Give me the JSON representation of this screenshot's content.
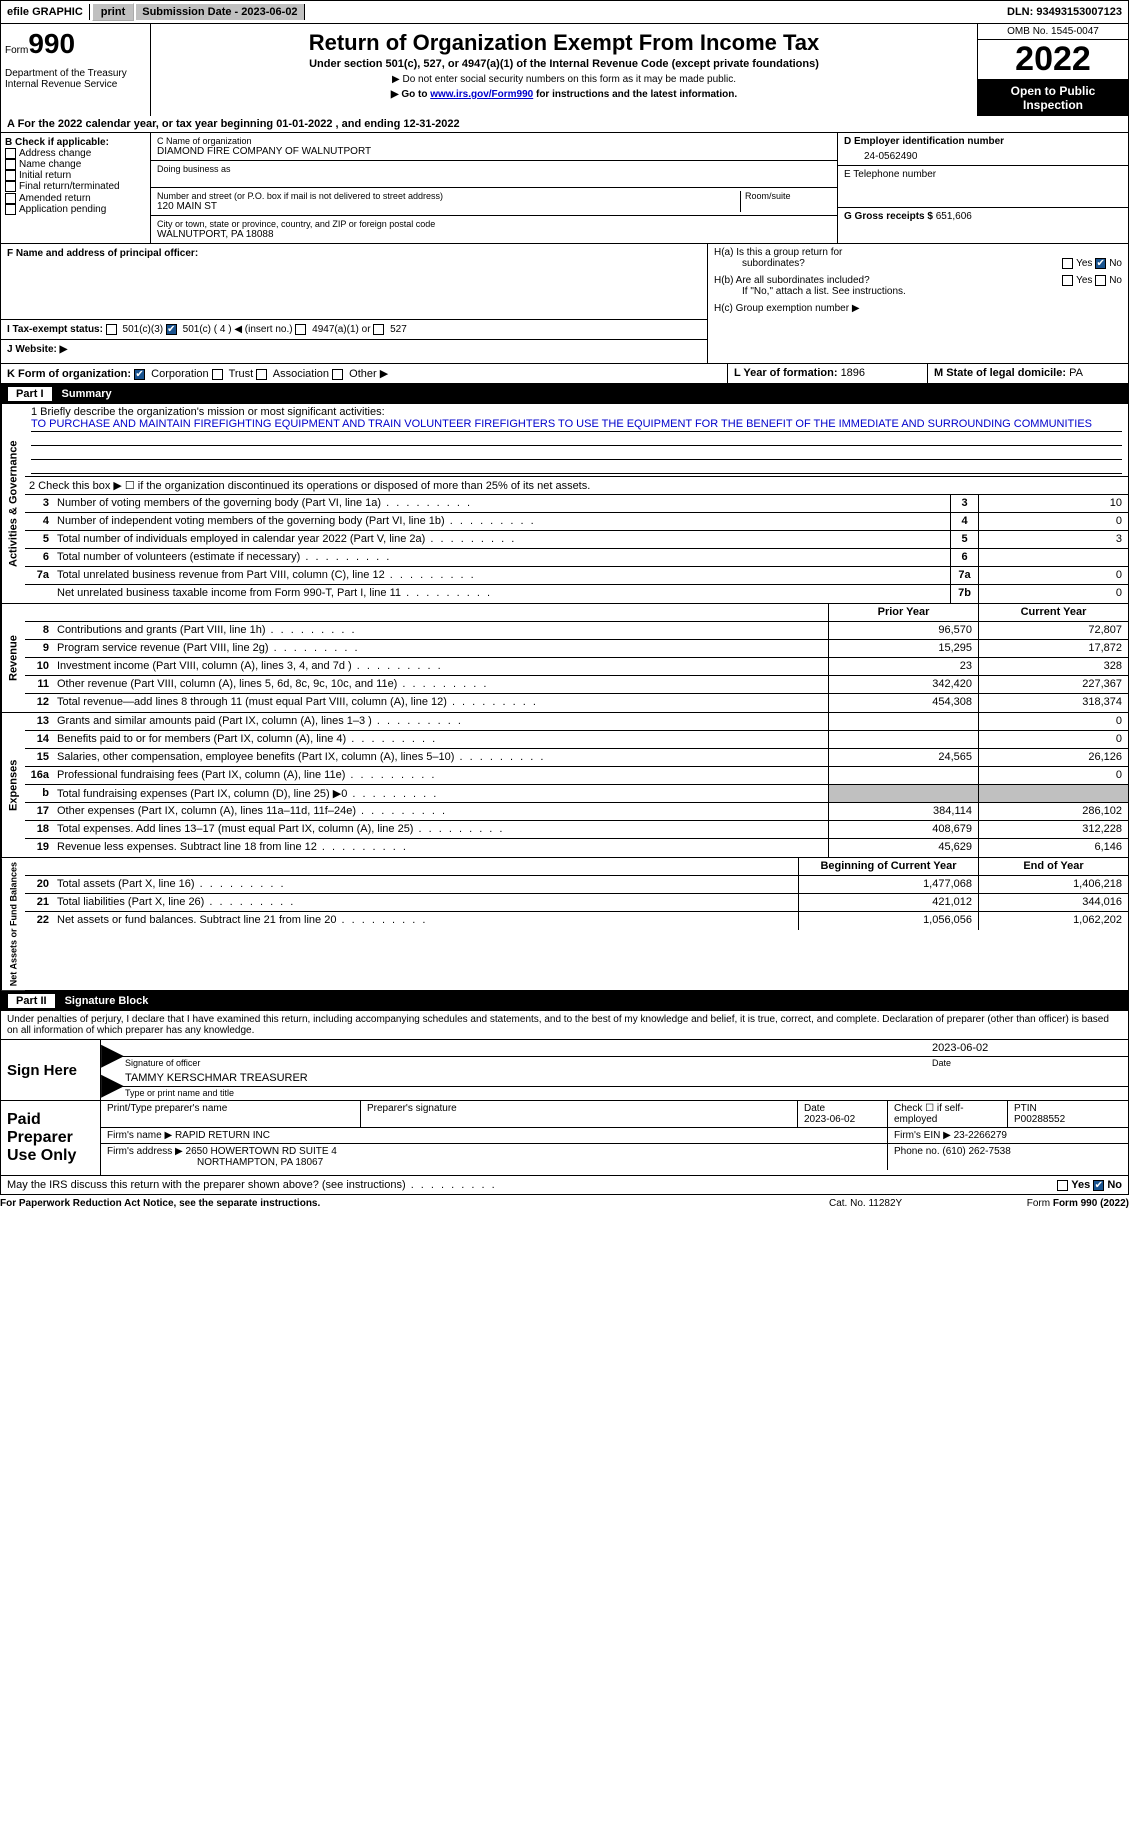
{
  "topbar": {
    "efile": "efile GRAPHIC",
    "print": "print",
    "sub_label": "Submission Date - ",
    "sub_date": "2023-06-02",
    "dln_label": "DLN: ",
    "dln": "93493153007123"
  },
  "header": {
    "form_word": "Form",
    "form_num": "990",
    "dept1": "Department of the Treasury",
    "dept2": "Internal Revenue Service",
    "title": "Return of Organization Exempt From Income Tax",
    "subtitle": "Under section 501(c), 527, or 4947(a)(1) of the Internal Revenue Code (except private foundations)",
    "instr1": "▶ Do not enter social security numbers on this form as it may be made public.",
    "instr2_pre": "▶ Go to ",
    "instr2_link": "www.irs.gov/Form990",
    "instr2_post": " for instructions and the latest information.",
    "omb": "OMB No. 1545-0047",
    "year": "2022",
    "open_pub": "Open to Public Inspection"
  },
  "row_a": "A For the 2022 calendar year, or tax year beginning 01-01-2022   , and ending 12-31-2022",
  "sec_b": {
    "head": "B Check if applicable:",
    "opts": [
      "Address change",
      "Name change",
      "Initial return",
      "Final return/terminated",
      "Amended return",
      "Application pending"
    ]
  },
  "sec_c": {
    "name_lbl": "C Name of organization",
    "name": "DIAMOND FIRE COMPANY OF WALNUTPORT",
    "dba_lbl": "Doing business as",
    "addr_lbl": "Number and street (or P.O. box if mail is not delivered to street address)",
    "room_lbl": "Room/suite",
    "addr": "120 MAIN ST",
    "city_lbl": "City or town, state or province, country, and ZIP or foreign postal code",
    "city": "WALNUTPORT, PA  18088"
  },
  "sec_d": {
    "ein_lbl": "D Employer identification number",
    "ein": "24-0562490",
    "tel_lbl": "E Telephone number",
    "gross_lbl": "G Gross receipts $ ",
    "gross": "651,606"
  },
  "sec_f": "F  Name and address of principal officer:",
  "sec_h": {
    "ha_lbl": "H(a)  Is this a group return for",
    "ha_sub": "subordinates?",
    "hb_lbl": "H(b)  Are all subordinates included?",
    "hb_note": "If \"No,\" attach a list. See instructions.",
    "hc_lbl": "H(c)  Group exemption number ▶",
    "yes": "Yes",
    "no": "No"
  },
  "row_i": {
    "label": "I  Tax-exempt status:",
    "opt1": "501(c)(3)",
    "opt2": "501(c) ( 4 ) ◀ (insert no.)",
    "opt3": "4947(a)(1) or",
    "opt4": "527"
  },
  "row_j": "J  Website: ▶",
  "row_k": {
    "label": "K Form of organization:",
    "opts": [
      "Corporation",
      "Trust",
      "Association",
      "Other ▶"
    ],
    "l_lbl": "L Year of formation: ",
    "l_val": "1896",
    "m_lbl": "M State of legal domicile: ",
    "m_val": "PA"
  },
  "part1": {
    "label": "Part I",
    "title": "Summary",
    "q1_pre": "1   Briefly describe the organization's mission or most significant activities:",
    "mission": "TO PURCHASE AND MAINTAIN FIREFIGHTING EQUIPMENT AND TRAIN VOLUNTEER FIREFIGHTERS TO USE THE EQUIPMENT FOR THE BENEFIT OF THE IMMEDIATE AND SURROUNDING COMMUNITIES",
    "q2": "2   Check this box ▶ ☐  if the organization discontinued its operations or disposed of more than 25% of its net assets.",
    "rows_a": [
      {
        "n": "3",
        "d": "Number of voting members of the governing body (Part VI, line 1a)",
        "b": "3",
        "v": "10"
      },
      {
        "n": "4",
        "d": "Number of independent voting members of the governing body (Part VI, line 1b)",
        "b": "4",
        "v": "0"
      },
      {
        "n": "5",
        "d": "Total number of individuals employed in calendar year 2022 (Part V, line 2a)",
        "b": "5",
        "v": "3"
      },
      {
        "n": "6",
        "d": "Total number of volunteers (estimate if necessary)",
        "b": "6",
        "v": ""
      },
      {
        "n": "7a",
        "d": "Total unrelated business revenue from Part VIII, column (C), line 12",
        "b": "7a",
        "v": "0"
      },
      {
        "n": "",
        "d": "Net unrelated business taxable income from Form 990-T, Part I, line 11",
        "b": "7b",
        "v": "0"
      }
    ],
    "col_prior": "Prior Year",
    "col_current": "Current Year",
    "vert_ag": "Activities & Governance",
    "vert_rev": "Revenue",
    "vert_exp": "Expenses",
    "vert_net": "Net Assets or Fund Balances",
    "rows_rev": [
      {
        "n": "8",
        "d": "Contributions and grants (Part VIII, line 1h)",
        "p": "96,570",
        "c": "72,807"
      },
      {
        "n": "9",
        "d": "Program service revenue (Part VIII, line 2g)",
        "p": "15,295",
        "c": "17,872"
      },
      {
        "n": "10",
        "d": "Investment income (Part VIII, column (A), lines 3, 4, and 7d )",
        "p": "23",
        "c": "328"
      },
      {
        "n": "11",
        "d": "Other revenue (Part VIII, column (A), lines 5, 6d, 8c, 9c, 10c, and 11e)",
        "p": "342,420",
        "c": "227,367"
      },
      {
        "n": "12",
        "d": "Total revenue—add lines 8 through 11 (must equal Part VIII, column (A), line 12)",
        "p": "454,308",
        "c": "318,374"
      }
    ],
    "rows_exp": [
      {
        "n": "13",
        "d": "Grants and similar amounts paid (Part IX, column (A), lines 1–3 )",
        "p": "",
        "c": "0"
      },
      {
        "n": "14",
        "d": "Benefits paid to or for members (Part IX, column (A), line 4)",
        "p": "",
        "c": "0"
      },
      {
        "n": "15",
        "d": "Salaries, other compensation, employee benefits (Part IX, column (A), lines 5–10)",
        "p": "24,565",
        "c": "26,126"
      },
      {
        "n": "16a",
        "d": "Professional fundraising fees (Part IX, column (A), line 11e)",
        "p": "",
        "c": "0"
      },
      {
        "n": "b",
        "d": "Total fundraising expenses (Part IX, column (D), line 25) ▶0",
        "p": "shade",
        "c": "shade"
      },
      {
        "n": "17",
        "d": "Other expenses (Part IX, column (A), lines 11a–11d, 11f–24e)",
        "p": "384,114",
        "c": "286,102"
      },
      {
        "n": "18",
        "d": "Total expenses. Add lines 13–17 (must equal Part IX, column (A), line 25)",
        "p": "408,679",
        "c": "312,228"
      },
      {
        "n": "19",
        "d": "Revenue less expenses. Subtract line 18 from line 12",
        "p": "45,629",
        "c": "6,146"
      }
    ],
    "col_beg": "Beginning of Current Year",
    "col_end": "End of Year",
    "rows_net": [
      {
        "n": "20",
        "d": "Total assets (Part X, line 16)",
        "p": "1,477,068",
        "c": "1,406,218"
      },
      {
        "n": "21",
        "d": "Total liabilities (Part X, line 26)",
        "p": "421,012",
        "c": "344,016"
      },
      {
        "n": "22",
        "d": "Net assets or fund balances. Subtract line 21 from line 20",
        "p": "1,056,056",
        "c": "1,062,202"
      }
    ]
  },
  "part2": {
    "label": "Part II",
    "title": "Signature Block",
    "decl": "Under penalties of perjury, I declare that I have examined this return, including accompanying schedules and statements, and to the best of my knowledge and belief, it is true, correct, and complete. Declaration of preparer (other than officer) is based on all information of which preparer has any knowledge.",
    "sign_here": "Sign Here",
    "sig_officer": "Signature of officer",
    "sig_date": "2023-06-02",
    "date_lbl": "Date",
    "officer_name": "TAMMY KERSCHMAR  TREASURER",
    "name_title_lbl": "Type or print name and title",
    "paid_lbl": "Paid Preparer Use Only",
    "prep_name_lbl": "Print/Type preparer's name",
    "prep_sig_lbl": "Preparer's signature",
    "prep_date_lbl": "Date",
    "prep_date": "2023-06-02",
    "check_self": "Check ☐ if self-employed",
    "ptin_lbl": "PTIN",
    "ptin": "P00288552",
    "firm_name_lbl": "Firm's name    ▶ ",
    "firm_name": "RAPID RETURN INC",
    "firm_ein_lbl": "Firm's EIN ▶ ",
    "firm_ein": "23-2266279",
    "firm_addr_lbl": "Firm's address ▶ ",
    "firm_addr1": "2650 HOWERTOWN RD SUITE 4",
    "firm_addr2": "NORTHAMPTON, PA  18067",
    "phone_lbl": "Phone no. ",
    "phone": "(610) 262-7538",
    "may_irs": "May the IRS discuss this return with the preparer shown above? (see instructions)"
  },
  "footer": {
    "pra": "For Paperwork Reduction Act Notice, see the separate instructions.",
    "cat": "Cat. No. 11282Y",
    "form": "Form 990 (2022)"
  },
  "colors": {
    "link": "#0000cc",
    "black": "#000000",
    "shade": "#c0c0c0",
    "checkblue": "#1a5490"
  }
}
